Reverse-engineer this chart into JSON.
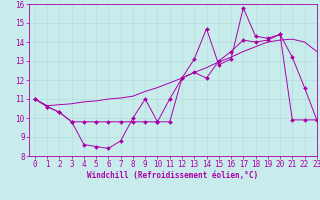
{
  "title": "",
  "xlabel": "Windchill (Refroidissement éolien,°C)",
  "ylabel": "",
  "xlim": [
    -0.5,
    23
  ],
  "ylim": [
    8,
    16
  ],
  "xticks": [
    0,
    1,
    2,
    3,
    4,
    5,
    6,
    7,
    8,
    9,
    10,
    11,
    12,
    13,
    14,
    15,
    16,
    17,
    18,
    19,
    20,
    21,
    22,
    23
  ],
  "yticks": [
    8,
    9,
    10,
    11,
    12,
    13,
    14,
    15,
    16
  ],
  "background_color": "#c8ecec",
  "line_color": "#aa00aa",
  "grid_color": "#b0d8d8",
  "line1_y": [
    11.0,
    10.6,
    10.3,
    9.8,
    8.6,
    8.5,
    8.4,
    8.8,
    10.0,
    11.0,
    9.8,
    11.0,
    12.1,
    13.1,
    14.7,
    12.8,
    13.1,
    15.8,
    14.3,
    14.2,
    14.4,
    13.2,
    11.6,
    9.9
  ],
  "line2_y": [
    11.0,
    10.6,
    10.3,
    9.8,
    9.8,
    9.8,
    9.8,
    9.8,
    9.8,
    9.8,
    9.8,
    9.8,
    12.1,
    12.4,
    12.1,
    13.0,
    13.5,
    14.1,
    14.0,
    14.1,
    14.4,
    9.9,
    9.9,
    9.9
  ],
  "line3_y": [
    11.0,
    10.65,
    10.7,
    10.75,
    10.85,
    10.9,
    11.0,
    11.05,
    11.15,
    11.4,
    11.6,
    11.85,
    12.1,
    12.4,
    12.65,
    12.95,
    13.2,
    13.5,
    13.75,
    14.0,
    14.1,
    14.15,
    14.0,
    13.5
  ],
  "tick_fontsize": 5.5,
  "xlabel_fontsize": 5.5
}
